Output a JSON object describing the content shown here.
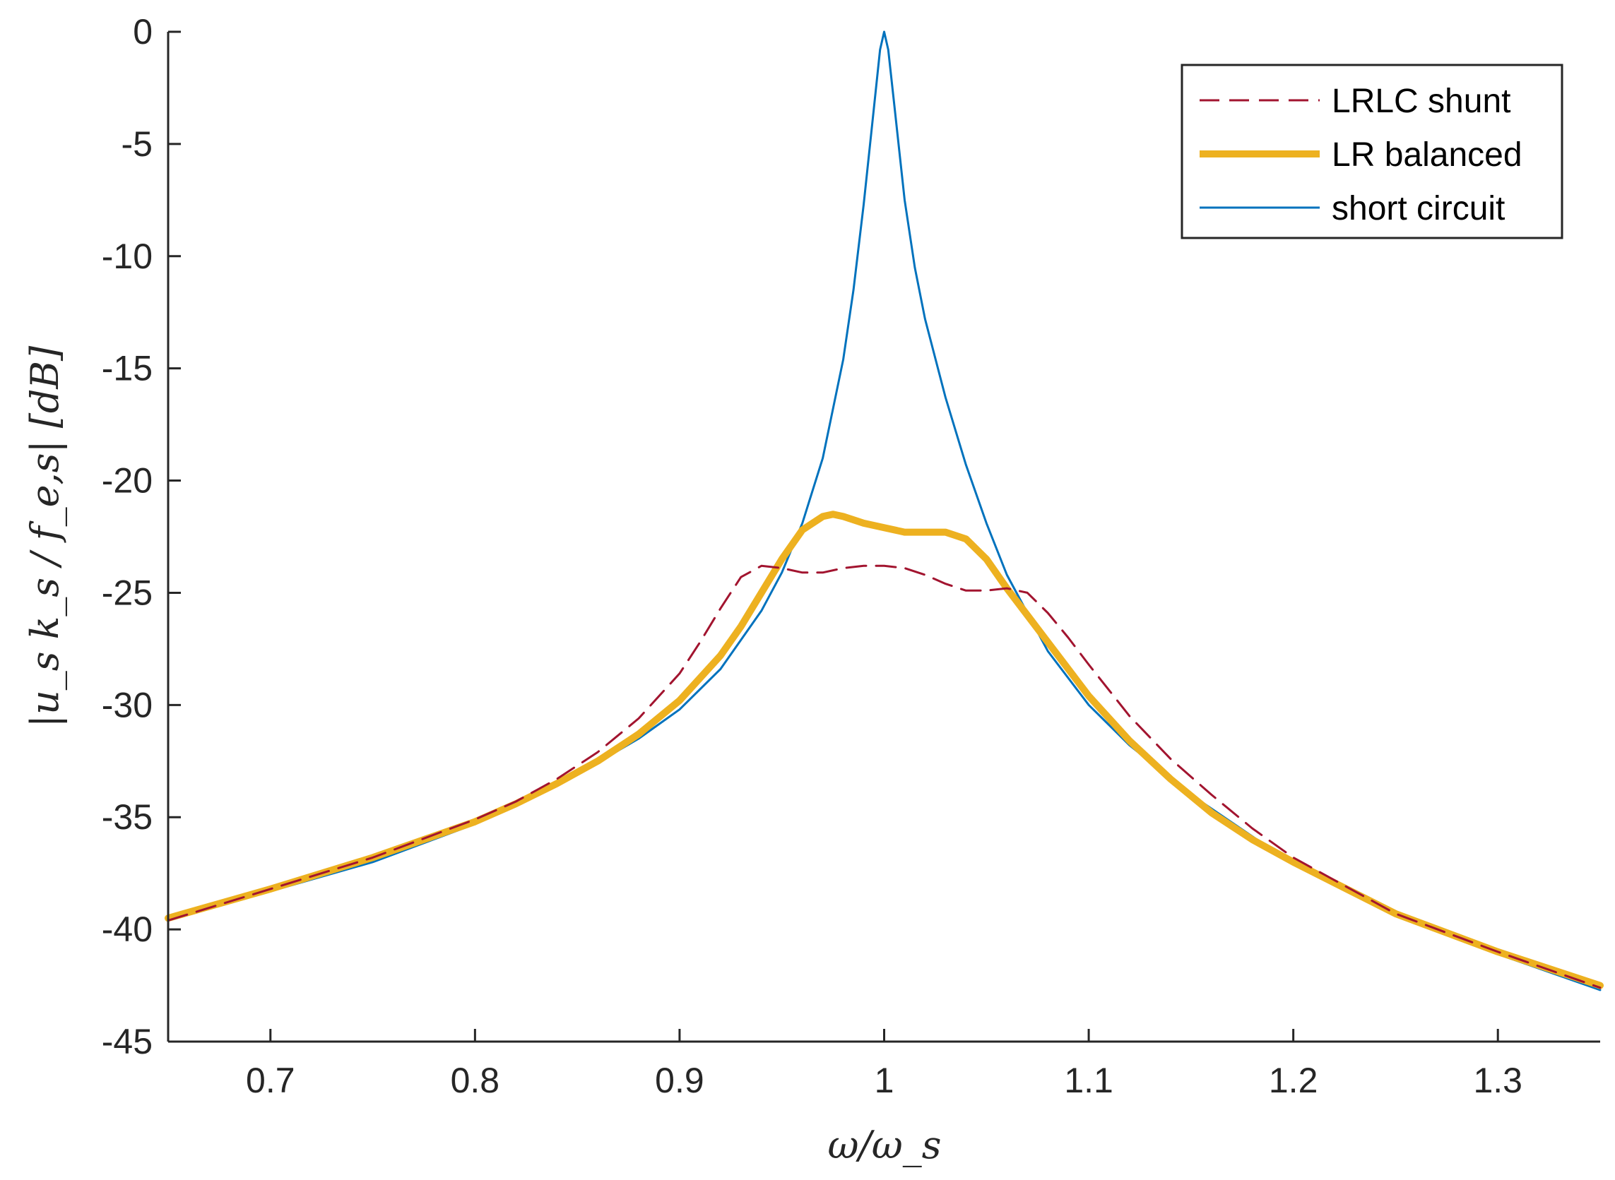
{
  "chart_data": {
    "type": "line",
    "xlabel": "ω/ω_s",
    "ylabel": "|u_s k_s / f_e,s| [dB]",
    "xlim": [
      0.65,
      1.35
    ],
    "ylim": [
      -45,
      0
    ],
    "xticks": [
      0.7,
      0.8,
      0.9,
      1.0,
      1.1,
      1.2,
      1.3
    ],
    "xtick_labels": [
      "0.7",
      "0.8",
      "0.9",
      "1",
      "1.1",
      "1.2",
      "1.3"
    ],
    "yticks": [
      0,
      -5,
      -10,
      -15,
      -20,
      -25,
      -30,
      -35,
      -40,
      -45
    ],
    "ytick_labels": [
      "0",
      "-5",
      "-10",
      "-15",
      "-20",
      "-25",
      "-30",
      "-35",
      "-40",
      "-45"
    ],
    "grid": false,
    "legend_position": "top-right",
    "series": [
      {
        "name": "LRLC shunt",
        "color": "#A2142F",
        "style": "dashed",
        "x": [
          0.65,
          0.7,
          0.75,
          0.8,
          0.82,
          0.84,
          0.86,
          0.88,
          0.9,
          0.91,
          0.92,
          0.93,
          0.94,
          0.95,
          0.96,
          0.97,
          0.98,
          0.99,
          1.0,
          1.01,
          1.02,
          1.03,
          1.04,
          1.05,
          1.06,
          1.07,
          1.08,
          1.09,
          1.1,
          1.12,
          1.14,
          1.16,
          1.18,
          1.2,
          1.25,
          1.3,
          1.35
        ],
        "y": [
          -39.6,
          -38.2,
          -36.8,
          -35.1,
          -34.3,
          -33.3,
          -32.1,
          -30.6,
          -28.6,
          -27.2,
          -25.7,
          -24.3,
          -23.8,
          -23.9,
          -24.1,
          -24.1,
          -23.9,
          -23.8,
          -23.8,
          -23.9,
          -24.2,
          -24.6,
          -24.9,
          -24.9,
          -24.8,
          -25.0,
          -25.9,
          -27.0,
          -28.2,
          -30.5,
          -32.4,
          -34.0,
          -35.5,
          -36.8,
          -39.3,
          -41.0,
          -42.6
        ]
      },
      {
        "name": "LR balanced",
        "color": "#EDB120",
        "style": "solid",
        "x": [
          0.65,
          0.7,
          0.75,
          0.8,
          0.82,
          0.84,
          0.86,
          0.88,
          0.9,
          0.92,
          0.93,
          0.94,
          0.95,
          0.96,
          0.97,
          0.975,
          0.98,
          0.99,
          1.0,
          1.01,
          1.02,
          1.03,
          1.04,
          1.05,
          1.06,
          1.07,
          1.08,
          1.1,
          1.12,
          1.14,
          1.16,
          1.18,
          1.2,
          1.25,
          1.3,
          1.35
        ],
        "y": [
          -39.5,
          -38.2,
          -36.8,
          -35.2,
          -34.4,
          -33.5,
          -32.5,
          -31.3,
          -29.8,
          -27.8,
          -26.5,
          -25.0,
          -23.5,
          -22.2,
          -21.6,
          -21.5,
          -21.6,
          -21.9,
          -22.1,
          -22.3,
          -22.3,
          -22.3,
          -22.6,
          -23.5,
          -24.8,
          -26.0,
          -27.2,
          -29.6,
          -31.6,
          -33.3,
          -34.8,
          -36.0,
          -37.0,
          -39.3,
          -41.0,
          -42.5
        ]
      },
      {
        "name": "short circuit",
        "color": "#0072BD",
        "style": "solid",
        "x": [
          0.65,
          0.7,
          0.75,
          0.8,
          0.85,
          0.88,
          0.9,
          0.92,
          0.94,
          0.95,
          0.96,
          0.97,
          0.98,
          0.985,
          0.99,
          0.995,
          0.998,
          1.0,
          1.002,
          1.005,
          1.01,
          1.015,
          1.02,
          1.03,
          1.04,
          1.05,
          1.06,
          1.08,
          1.1,
          1.12,
          1.15,
          1.2,
          1.25,
          1.3,
          1.35
        ],
        "y": [
          -39.6,
          -38.3,
          -37.0,
          -35.3,
          -33.1,
          -31.5,
          -30.2,
          -28.4,
          -25.8,
          -24.1,
          -21.9,
          -19.0,
          -14.6,
          -11.5,
          -7.7,
          -3.4,
          -0.8,
          0.0,
          -0.8,
          -3.3,
          -7.5,
          -10.5,
          -12.8,
          -16.3,
          -19.3,
          -21.9,
          -24.2,
          -27.6,
          -30.0,
          -31.8,
          -34.0,
          -37.1,
          -39.2,
          -41.1,
          -42.7
        ]
      }
    ]
  }
}
